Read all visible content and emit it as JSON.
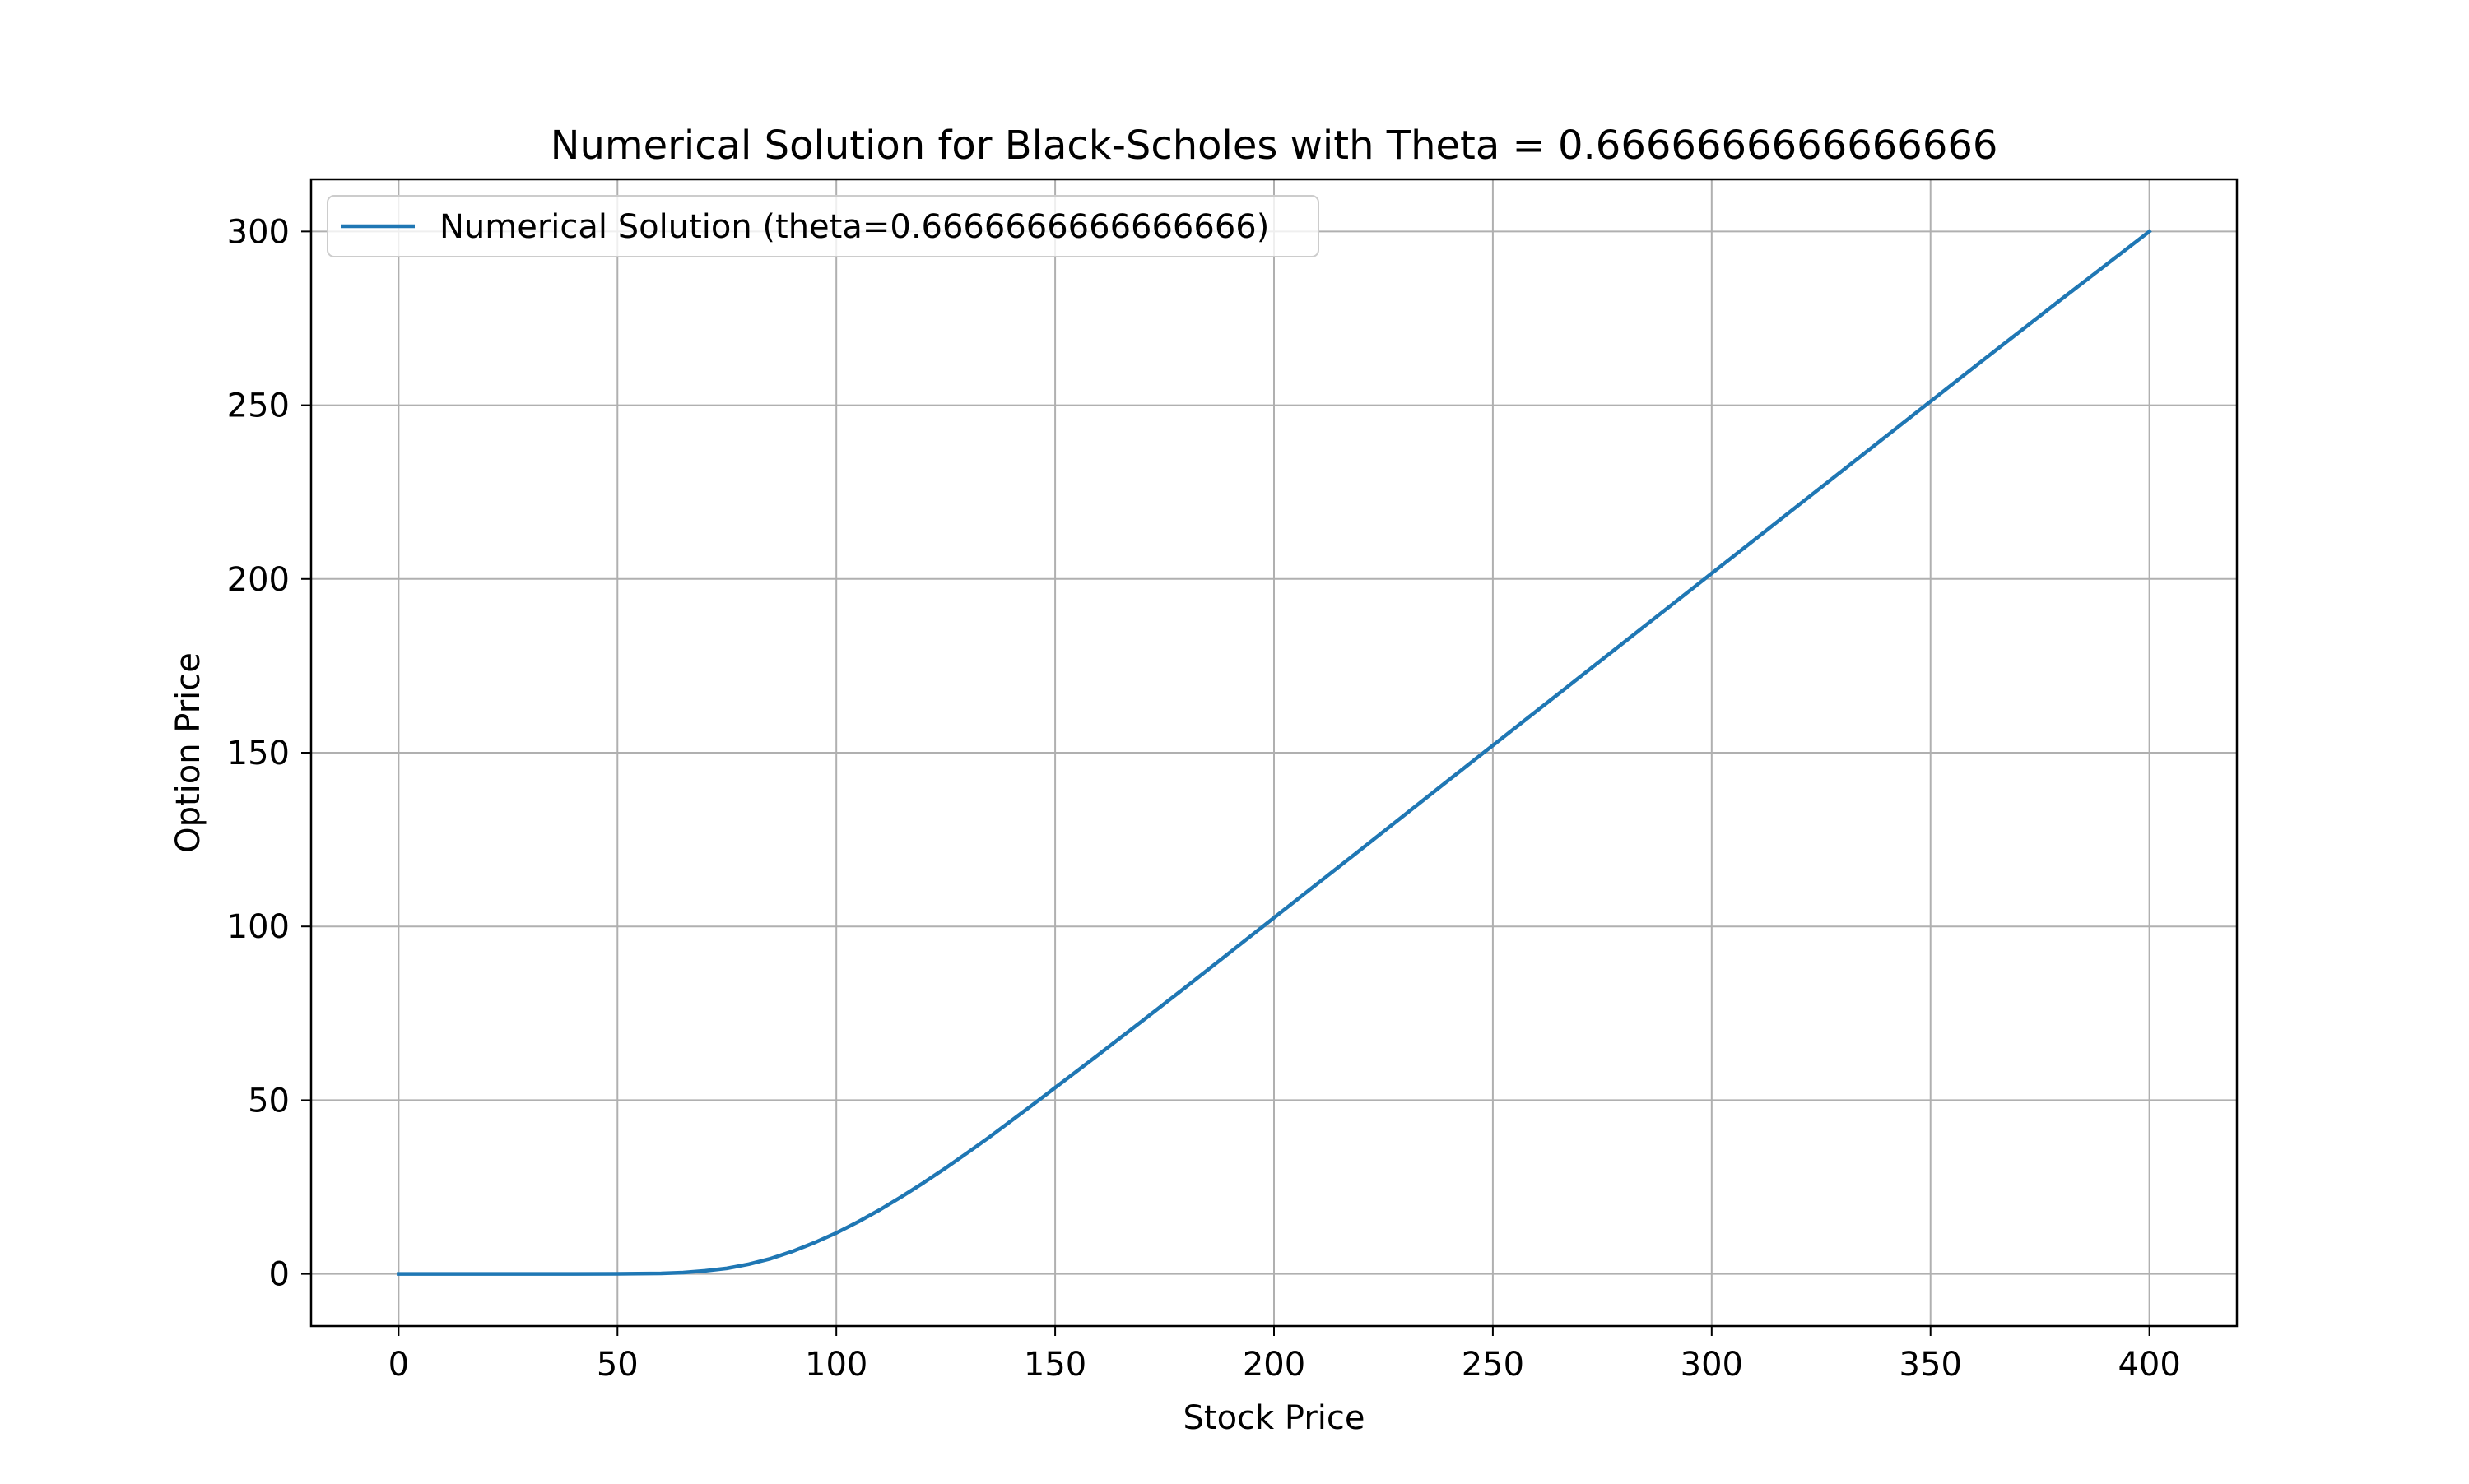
{
  "chart_data": {
    "type": "line",
    "title": "Numerical Solution for Black-Scholes with Theta = 0.6666666666666666",
    "xlabel": "Stock Price",
    "ylabel": "Option Price",
    "xlim": [
      -20,
      420
    ],
    "ylim": [
      -15,
      315
    ],
    "xticks": [
      0,
      50,
      100,
      150,
      200,
      250,
      300,
      350,
      400
    ],
    "yticks": [
      0,
      50,
      100,
      150,
      200,
      250,
      300
    ],
    "grid": true,
    "legend_position": "upper left",
    "series": [
      {
        "name": "Numerical Solution (theta=0.6666666666666666)",
        "color": "#1f77b4",
        "x": [
          0,
          20,
          40,
          50,
          60,
          65,
          70,
          75,
          80,
          85,
          90,
          95,
          100,
          105,
          110,
          115,
          120,
          125,
          130,
          135,
          140,
          145,
          150,
          160,
          170,
          180,
          190,
          200,
          220,
          240,
          260,
          280,
          300,
          320,
          340,
          360,
          380,
          400
        ],
        "y": [
          0,
          0,
          0,
          0.02,
          0.15,
          0.4,
          0.9,
          1.6,
          2.8,
          4.4,
          6.5,
          9.0,
          11.8,
          15.0,
          18.5,
          22.3,
          26.3,
          30.5,
          34.9,
          39.4,
          44.1,
          48.8,
          53.6,
          63.2,
          72.9,
          82.7,
          92.6,
          102.5,
          122.3,
          142.2,
          162.0,
          181.8,
          201.6,
          221.4,
          241.2,
          261.0,
          280.6,
          300
        ]
      }
    ]
  }
}
